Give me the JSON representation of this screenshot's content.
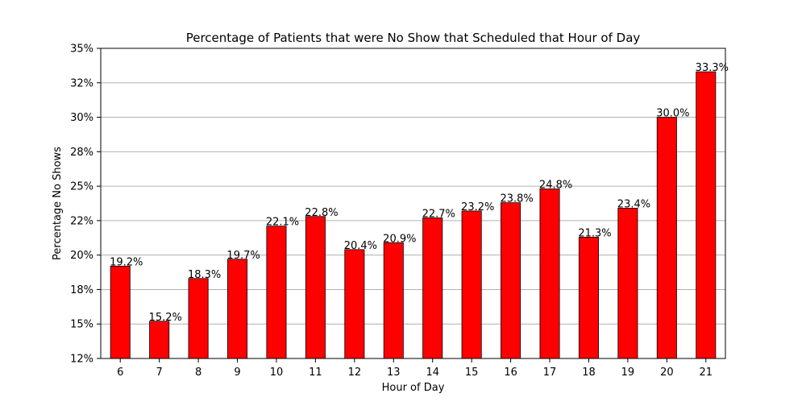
{
  "chart_data": {
    "type": "bar",
    "title": "Percentage of Patients that were No Show that Scheduled that Hour of Day",
    "xlabel": "Hour of Day",
    "ylabel": "Percentage No Shows",
    "categories": [
      "6",
      "7",
      "8",
      "9",
      "10",
      "11",
      "12",
      "13",
      "14",
      "15",
      "16",
      "17",
      "18",
      "19",
      "20",
      "21"
    ],
    "values": [
      19.2,
      15.2,
      18.3,
      19.7,
      22.1,
      22.8,
      20.4,
      20.9,
      22.7,
      23.2,
      23.8,
      24.8,
      21.3,
      23.4,
      30.0,
      33.3
    ],
    "data_labels": [
      "19.2%",
      "15.2%",
      "18.3%",
      "19.7%",
      "22.1%",
      "22.8%",
      "20.4%",
      "20.9%",
      "22.7%",
      "23.2%",
      "23.8%",
      "24.8%",
      "21.3%",
      "23.4%",
      "30.0%",
      "33.3%"
    ],
    "ylim": [
      12.5,
      35
    ],
    "y_ticks": [
      12.5,
      15,
      17.5,
      20,
      22.5,
      25,
      27.5,
      30,
      32.5,
      35
    ],
    "y_tick_labels": [
      "12%",
      "15%",
      "18%",
      "20%",
      "22%",
      "25%",
      "28%",
      "30%",
      "32%",
      "35%"
    ],
    "grid": "y-major",
    "bar_color": "#ff0000",
    "bar_edge_color": "#000000"
  }
}
